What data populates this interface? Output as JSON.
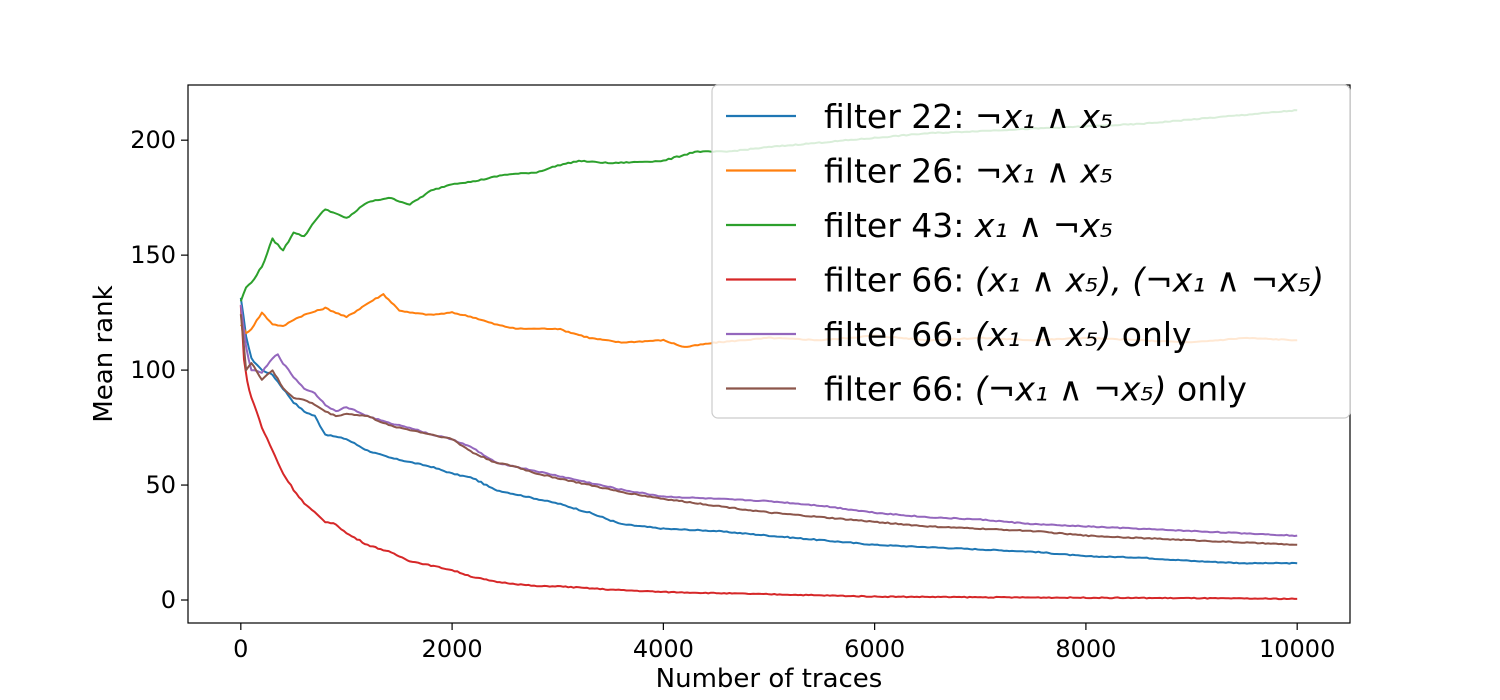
{
  "chart_data": {
    "type": "line",
    "title": "",
    "xlabel": "Number of traces",
    "ylabel": "Mean rank",
    "xlim": [
      -500,
      10500
    ],
    "ylim": [
      -10,
      224
    ],
    "xticks": [
      0,
      2000,
      4000,
      6000,
      8000,
      10000
    ],
    "xtick_labels": [
      "0",
      "2000",
      "4000",
      "6000",
      "8000",
      "10000"
    ],
    "yticks": [
      0,
      50,
      100,
      150,
      200
    ],
    "ytick_labels": [
      "0",
      "50",
      "100",
      "150",
      "200"
    ],
    "grid": false,
    "legend_position": "top-right",
    "series": [
      {
        "name": "filter 22: ¬x₁ ∧ x₅",
        "legend": {
          "prefix": "filter 22: ",
          "math": "¬x₁ ∧ x₅",
          "suffix": ""
        },
        "color": "#1f77b4",
        "x": [
          0,
          50,
          100,
          200,
          300,
          400,
          500,
          600,
          700,
          800,
          900,
          1000,
          1200,
          1400,
          1600,
          1800,
          2000,
          2200,
          2400,
          2600,
          2800,
          3000,
          3300,
          3600,
          4000,
          4500,
          5000,
          5500,
          6000,
          6500,
          7000,
          7500,
          8000,
          8500,
          9000,
          9500,
          10000
        ],
        "y": [
          131,
          115,
          105,
          100,
          98,
          92,
          86,
          82,
          80,
          72,
          71,
          70,
          65,
          62,
          60,
          58,
          55,
          53,
          48,
          46,
          44,
          42,
          38,
          33,
          31,
          30,
          28,
          26,
          24,
          23,
          22,
          21,
          19,
          18.5,
          17,
          16,
          16
        ]
      },
      {
        "name": "filter 26: ¬x₁ ∧ x₅",
        "legend": {
          "prefix": "filter 26: ",
          "math": "¬x₁ ∧ x₅",
          "suffix": ""
        },
        "color": "#ff7f0e",
        "x": [
          0,
          50,
          100,
          200,
          300,
          400,
          500,
          600,
          800,
          1000,
          1200,
          1350,
          1500,
          1600,
          1800,
          2000,
          2200,
          2400,
          2600,
          2800,
          3000,
          3300,
          3600,
          4000,
          4200,
          4500,
          5000,
          5500,
          6000,
          6500,
          7000,
          7500,
          8000,
          8500,
          9000,
          9500,
          10000
        ],
        "y": [
          120,
          116,
          118,
          125,
          120,
          119,
          122,
          124,
          127,
          123,
          129,
          133,
          126,
          125,
          124,
          125,
          123,
          120,
          118,
          118,
          118,
          114,
          112,
          113,
          110,
          112,
          114,
          113,
          115,
          113,
          114,
          113,
          114,
          113,
          112,
          114,
          113
        ]
      },
      {
        "name": "filter 43: x₁ ∧ ¬x₅",
        "legend": {
          "prefix": "filter 43: ",
          "math": "x₁ ∧ ¬x₅",
          "suffix": ""
        },
        "color": "#2ca02c",
        "x": [
          0,
          50,
          100,
          200,
          300,
          400,
          500,
          600,
          700,
          800,
          900,
          1000,
          1200,
          1400,
          1600,
          1800,
          2000,
          2200,
          2500,
          2800,
          3000,
          3200,
          3500,
          4000,
          4300,
          4600,
          5000,
          5500,
          6000,
          6500,
          7000,
          7500,
          8000,
          8500,
          9000,
          9500,
          10000
        ],
        "y": [
          130,
          136,
          138,
          145,
          157,
          152,
          160,
          158,
          165,
          170,
          168,
          166,
          173,
          175,
          172,
          178,
          181,
          182,
          185,
          186,
          189,
          191,
          190,
          191,
          195,
          195,
          197,
          199,
          201,
          203,
          204,
          205,
          206,
          207,
          209,
          211,
          213
        ]
      },
      {
        "name": "filter 66: (x₁ ∧ x₅), (¬x₁ ∧ ¬x₅)",
        "legend": {
          "prefix": "filter 66: ",
          "math": "(x₁ ∧ x₅), (¬x₁ ∧ ¬x₅)",
          "suffix": ""
        },
        "color": "#d62728",
        "x": [
          0,
          30,
          60,
          100,
          150,
          200,
          300,
          400,
          500,
          600,
          700,
          800,
          900,
          1000,
          1200,
          1400,
          1600,
          1800,
          2000,
          2200,
          2400,
          2600,
          2800,
          3000,
          3500,
          4000,
          4500,
          5000,
          5500,
          6000,
          7000,
          8000,
          9000,
          10000
        ],
        "y": [
          128,
          105,
          95,
          88,
          82,
          75,
          65,
          55,
          48,
          42,
          38,
          34,
          33,
          29,
          24,
          21,
          17,
          15,
          13,
          10,
          8,
          7,
          6,
          6,
          4.5,
          3.5,
          3,
          2.5,
          2,
          1.5,
          1.2,
          1,
          0.8,
          0.5
        ]
      },
      {
        "name": "filter 66: (x₁ ∧ x₅) only",
        "legend": {
          "prefix": "filter 66: ",
          "math": "(x₁ ∧ x₅)",
          "suffix": " only"
        },
        "color": "#9467bd",
        "x": [
          0,
          50,
          100,
          200,
          300,
          350,
          400,
          500,
          600,
          700,
          800,
          900,
          1000,
          1200,
          1400,
          1600,
          1800,
          2000,
          2200,
          2400,
          2600,
          2800,
          3000,
          3300,
          3600,
          4000,
          4500,
          5000,
          5500,
          6000,
          6500,
          7000,
          7500,
          8000,
          8500,
          9000,
          9500,
          10000
        ],
        "y": [
          128,
          110,
          100,
          99,
          105,
          107,
          103,
          97,
          92,
          90,
          85,
          82,
          84,
          80,
          77,
          75,
          72,
          70,
          66,
          60,
          58,
          56,
          54,
          51,
          48,
          45,
          44,
          43,
          41,
          38,
          36,
          35,
          33,
          32,
          31,
          30,
          29,
          28
        ]
      },
      {
        "name": "filter 66: (¬x₁ ∧ ¬x₅) only",
        "legend": {
          "prefix": "filter 66: ",
          "math": "(¬x₁ ∧ ¬x₅)",
          "suffix": " only"
        },
        "color": "#8c564b",
        "x": [
          0,
          50,
          100,
          200,
          300,
          400,
          500,
          600,
          700,
          800,
          900,
          1000,
          1200,
          1400,
          1600,
          1800,
          2000,
          2200,
          2400,
          2600,
          2800,
          3000,
          3300,
          3600,
          4000,
          4500,
          5000,
          5500,
          6000,
          6500,
          7000,
          7500,
          8000,
          8500,
          9000,
          9500,
          10000
        ],
        "y": [
          125,
          100,
          103,
          96,
          100,
          92,
          88,
          87,
          85,
          82,
          80,
          81,
          80,
          76,
          74,
          72,
          70,
          64,
          60,
          58,
          55,
          53,
          50,
          47,
          44,
          41,
          38,
          36,
          34,
          32,
          31,
          30,
          28,
          27,
          26,
          25,
          24
        ]
      }
    ]
  }
}
